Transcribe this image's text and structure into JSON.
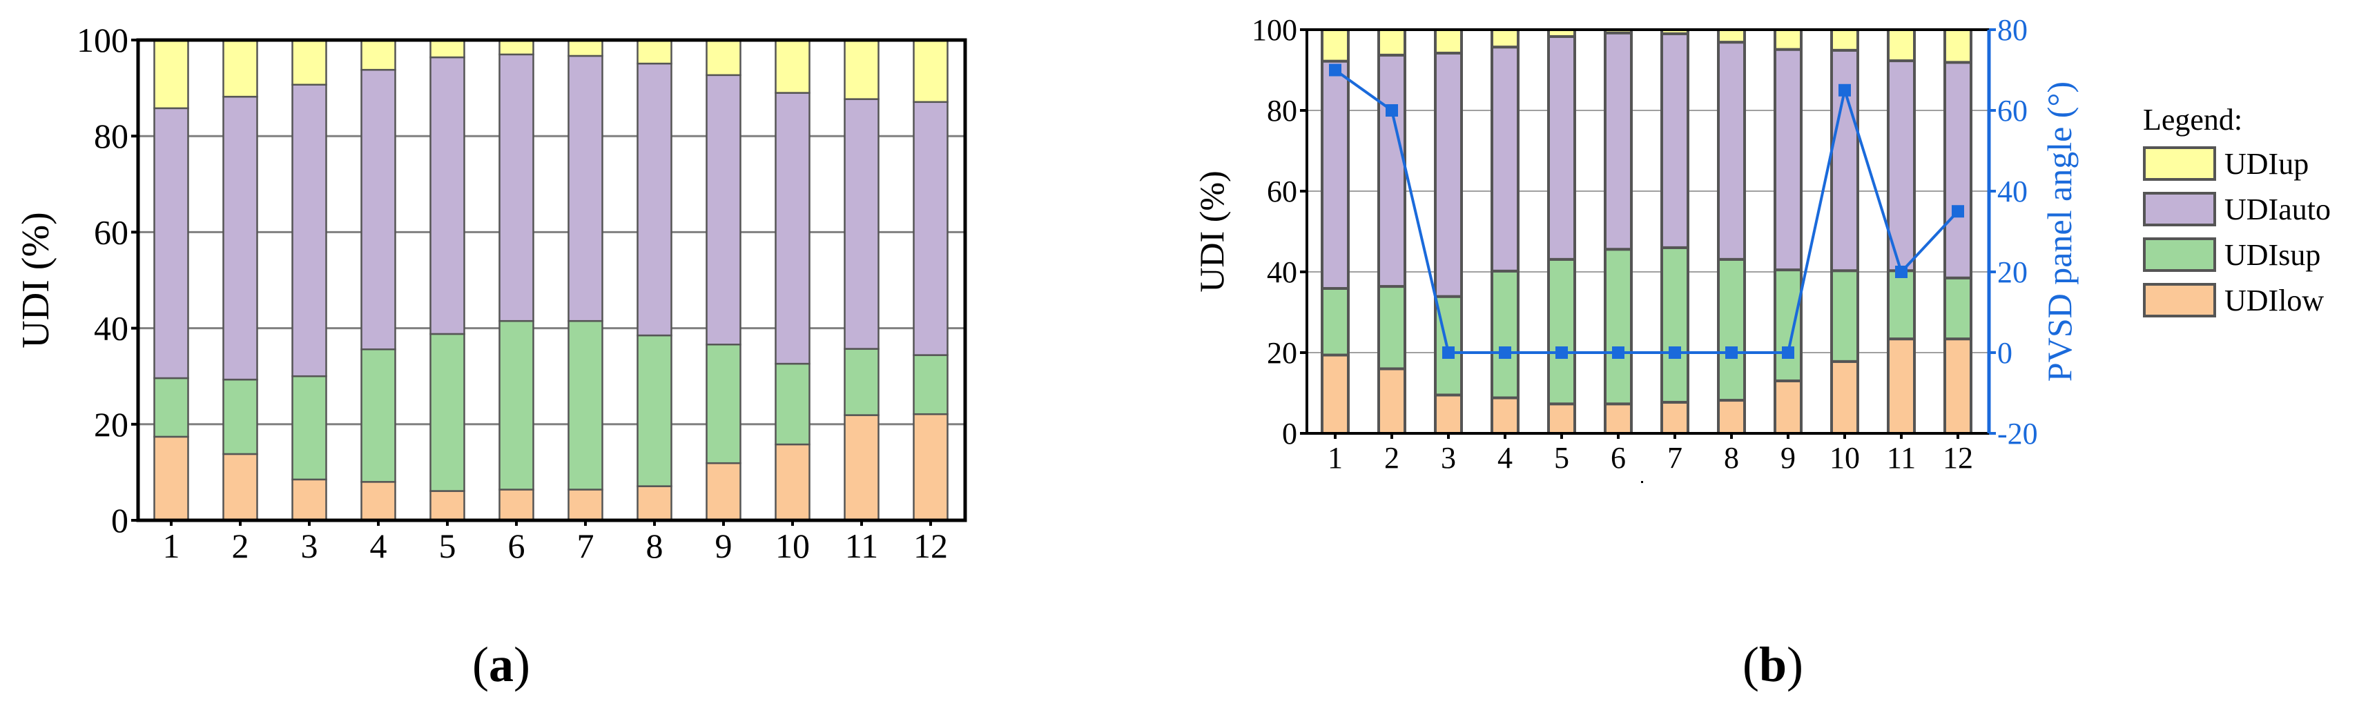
{
  "colors": {
    "UDIup": "#ffffa0",
    "UDIauto": "#c2b2d6",
    "UDIsup": "#9ed79c",
    "UDIlow": "#fbc897",
    "bar_border": "#555555",
    "grid": "#808080",
    "angle_line": "#1a6adb"
  },
  "panels": {
    "a": {
      "label_open": "(",
      "label_letter": "a",
      "label_close": ")"
    },
    "b": {
      "label_open": "(",
      "label_letter": "b",
      "label_close": ")"
    }
  },
  "legend": {
    "title": "Legend:",
    "items": [
      {
        "key": "UDIup",
        "label": "UDIup"
      },
      {
        "key": "UDIauto",
        "label": "UDIauto"
      },
      {
        "key": "UDIsup",
        "label": "UDIsup"
      },
      {
        "key": "UDIlow",
        "label": "UDIlow"
      }
    ]
  },
  "chart_data": [
    {
      "id": "a",
      "type": "bar",
      "stacked": true,
      "title": "",
      "xlabel": "",
      "ylabel": "UDI (%)",
      "ylim": [
        0,
        100
      ],
      "yticks": [
        0,
        20,
        40,
        60,
        80,
        100
      ],
      "grid": true,
      "categories": [
        "1",
        "2",
        "3",
        "4",
        "5",
        "6",
        "7",
        "8",
        "9",
        "10",
        "11",
        "12"
      ],
      "series": [
        {
          "name": "UDIlow",
          "values": [
            17.4,
            13.8,
            8.5,
            8.0,
            6.1,
            6.4,
            6.4,
            7.1,
            11.9,
            15.8,
            21.9,
            22.1
          ]
        },
        {
          "name": "UDIsup",
          "values": [
            12.2,
            15.5,
            21.5,
            27.6,
            32.7,
            35.1,
            35.1,
            31.4,
            24.7,
            16.8,
            13.8,
            12.3
          ]
        },
        {
          "name": "UDIauto",
          "values": [
            56.2,
            58.9,
            60.7,
            58.2,
            57.6,
            55.5,
            55.2,
            56.6,
            56.1,
            56.4,
            52.0,
            52.7
          ]
        },
        {
          "name": "UDIup",
          "values": [
            14.2,
            11.8,
            9.3,
            6.2,
            3.6,
            3.0,
            3.3,
            4.9,
            7.3,
            11.0,
            12.3,
            12.9
          ]
        }
      ]
    },
    {
      "id": "b",
      "type": "bar",
      "stacked": true,
      "title": "",
      "xlabel": "",
      "ylabel": "UDI (%)",
      "ylim": [
        0,
        100
      ],
      "yticks": [
        0,
        20,
        40,
        60,
        80,
        100
      ],
      "grid": true,
      "categories": [
        "1",
        "2",
        "3",
        "4",
        "5",
        "6",
        "7",
        "8",
        "9",
        "10",
        "11",
        "12"
      ],
      "series": [
        {
          "name": "UDIlow",
          "values": [
            19.4,
            16.0,
            9.5,
            8.8,
            7.3,
            7.3,
            7.7,
            8.2,
            13.0,
            17.8,
            23.4,
            23.4
          ]
        },
        {
          "name": "UDIsup",
          "values": [
            16.5,
            20.4,
            24.4,
            31.4,
            35.8,
            38.3,
            38.3,
            34.9,
            27.5,
            22.5,
            16.9,
            15.1
          ]
        },
        {
          "name": "UDIauto",
          "values": [
            56.3,
            57.3,
            60.3,
            55.5,
            55.2,
            53.6,
            53.0,
            53.8,
            54.6,
            54.6,
            52.0,
            53.4
          ]
        },
        {
          "name": "UDIup",
          "values": [
            7.8,
            6.3,
            5.8,
            4.3,
            1.7,
            0.8,
            1.0,
            3.1,
            4.9,
            5.1,
            7.7,
            8.1
          ]
        }
      ],
      "secondary_axis": {
        "type": "line",
        "name": "PVSD panel angle",
        "ylabel": "PVSD panel angle (°)",
        "ylim": [
          -20,
          80
        ],
        "yticks": [
          -20,
          0,
          20,
          40,
          60,
          80
        ],
        "marker": "square",
        "values": [
          70,
          60,
          0,
          0,
          0,
          0,
          0,
          0,
          0,
          65,
          20,
          35
        ]
      },
      "legend": {
        "position": "right",
        "title": "Legend:",
        "entries": [
          "UDIup",
          "UDIauto",
          "UDIsup",
          "UDIlow"
        ]
      }
    }
  ]
}
